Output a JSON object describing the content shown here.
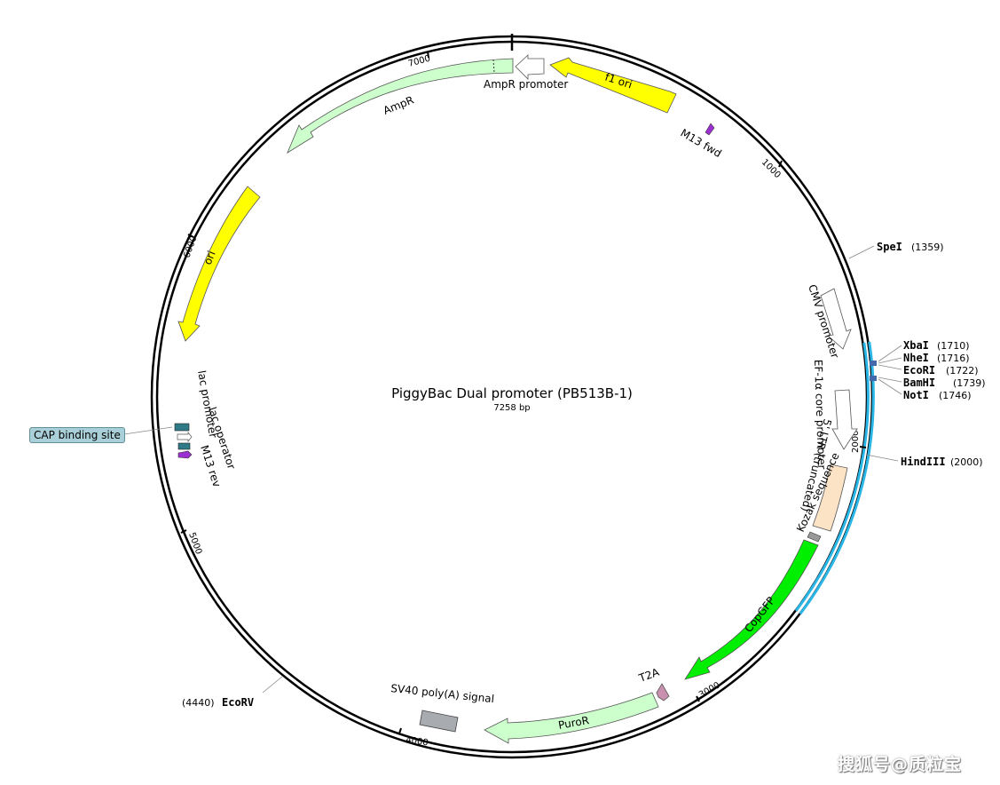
{
  "map": {
    "title": "PiggyBac Dual promoter (PB513B-1)",
    "length_label": "7258 bp",
    "total_bp": 7258
  },
  "tick_labels": [
    "1000",
    "2000",
    "3000",
    "4000",
    "5000",
    "6000",
    "7000"
  ],
  "features": [
    {
      "name": "f1 ori",
      "color": "#ffff00"
    },
    {
      "name": "M13 fwd",
      "color": "#9b30d0"
    },
    {
      "name": "AmpR promoter",
      "color": "#ffffff"
    },
    {
      "name": "AmpR",
      "color": "#ccffcc"
    },
    {
      "name": "ori",
      "color": "#ffff00"
    },
    {
      "name": "lac operator",
      "color": "#ffffff"
    },
    {
      "name": "lac promoter",
      "color": "#ffffff"
    },
    {
      "name": "M13 rev",
      "color": "#9b30d0"
    },
    {
      "name": "CAP binding site",
      "color": "#a9cfd8"
    },
    {
      "name": "CMV promoter",
      "color": "#ffffff"
    },
    {
      "name": "EF-1α core promoter",
      "color": "#ffffff"
    },
    {
      "name": "5' LTR (truncated)",
      "color": "#fde3c5"
    },
    {
      "name": "Kozak sequence",
      "color": "#999999"
    },
    {
      "name": "CopGFP",
      "color": "#00ee00"
    },
    {
      "name": "T2A",
      "color": "#c990b0"
    },
    {
      "name": "PuroR",
      "color": "#ccffcc"
    },
    {
      "name": "SV40 poly(A) signal",
      "color": "#a8abb0"
    }
  ],
  "sites": [
    {
      "name": "SpeI",
      "pos": "(1359)"
    },
    {
      "name": "XbaI",
      "pos": "(1710)"
    },
    {
      "name": "NheI",
      "pos": "(1716)"
    },
    {
      "name": "EcoRI",
      "pos": "(1722)"
    },
    {
      "name": "BamHI",
      "pos": "(1739)"
    },
    {
      "name": "NotI",
      "pos": "(1746)"
    },
    {
      "name": "HindIII",
      "pos": "(2000)"
    },
    {
      "name": "EcoRV",
      "pos": "(4440)"
    }
  ],
  "watermark": "搜狐号@质粒宝",
  "colors": {
    "backbone": "#000000",
    "mcs": "#29b6e6"
  }
}
